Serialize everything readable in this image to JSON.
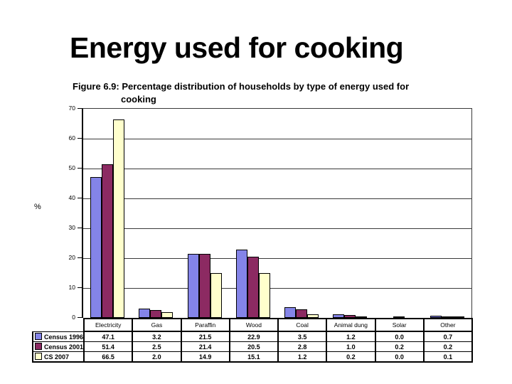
{
  "slide": {
    "title": "Energy used for cooking"
  },
  "figure": {
    "caption_line1": "Figure 6.9: Percentage distribution of households by type of energy used for",
    "caption_line2": "cooking"
  },
  "chart_data": {
    "type": "bar",
    "title": "Figure 6.9: Percentage distribution of households by type of energy used for cooking",
    "ylabel": "%",
    "xlabel": "",
    "ylim": [
      0,
      70
    ],
    "yticks": [
      0,
      10,
      20,
      30,
      40,
      50,
      60,
      70
    ],
    "grid": true,
    "legend_position": "table-left",
    "categories": [
      "Electricity",
      "Gas",
      "Paraffin",
      "Wood",
      "Coal",
      "Animal dung",
      "Solar",
      "Other"
    ],
    "series": [
      {
        "name": "Census 1996",
        "color": "#8484E8",
        "values": [
          47.1,
          3.2,
          21.5,
          22.9,
          3.5,
          1.2,
          0.0,
          0.7
        ]
      },
      {
        "name": "Census 2001",
        "color": "#8C2A62",
        "values": [
          51.4,
          2.5,
          21.4,
          20.5,
          2.8,
          1.0,
          0.2,
          0.2
        ]
      },
      {
        "name": "CS 2007",
        "color": "#FFFFCC",
        "values": [
          66.5,
          2.0,
          14.9,
          15.1,
          1.2,
          0.2,
          0.0,
          0.1
        ]
      }
    ]
  },
  "colors": {
    "axis": "#000000",
    "grid": "#3a3a3a",
    "bar_border": "#000000",
    "text": "#000000"
  }
}
